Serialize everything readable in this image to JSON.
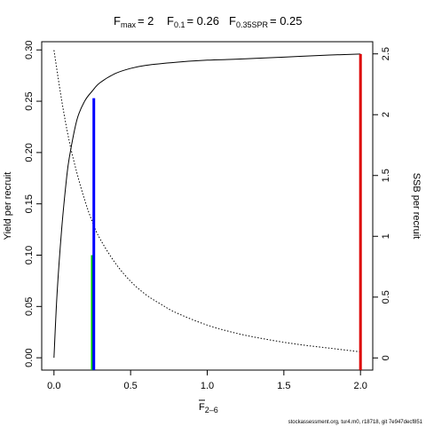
{
  "chart_data": {
    "type": "line",
    "title": {
      "fmax": {
        "main": "F",
        "sub": "max",
        "value": "= 2"
      },
      "f01": {
        "main": "F",
        "sub": "0.1",
        "value": "= 0.26"
      },
      "fspr": {
        "main": "F",
        "sub": "0.35SPR",
        "value": "= 0.25"
      }
    },
    "xlabel": {
      "main": "F",
      "sub": "2–6"
    },
    "ylabel_left": "Yield per recruit",
    "ylabel_right": "SSB per recruit",
    "xlim": [
      -0.08,
      2.08
    ],
    "ylim_left": [
      -0.012,
      0.308
    ],
    "ylim_right": [
      -0.1,
      2.6
    ],
    "x_ticks": [
      {
        "value": 0,
        "label": "0.0"
      },
      {
        "value": 0.5,
        "label": "0.5"
      },
      {
        "value": 1.0,
        "label": "1.0"
      },
      {
        "value": 1.5,
        "label": "1.5"
      },
      {
        "value": 2.0,
        "label": "2.0"
      }
    ],
    "y_left_ticks": [
      {
        "value": 0,
        "label": "0.00"
      },
      {
        "value": 0.05,
        "label": "0.05"
      },
      {
        "value": 0.1,
        "label": "0.10"
      },
      {
        "value": 0.15,
        "label": "0.15"
      },
      {
        "value": 0.2,
        "label": "0.20"
      },
      {
        "value": 0.25,
        "label": "0.25"
      },
      {
        "value": 0.3,
        "label": "0.30"
      }
    ],
    "y_right_ticks": [
      {
        "value": 0,
        "label": "0"
      },
      {
        "value": 0.5,
        "label": "0.5"
      },
      {
        "value": 1.0,
        "label": "1"
      },
      {
        "value": 1.5,
        "label": "1.5"
      },
      {
        "value": 2.0,
        "label": "2"
      },
      {
        "value": 2.5,
        "label": "2.5"
      }
    ],
    "series": [
      {
        "axis": "left",
        "style": "solid",
        "color": "#000000",
        "x": [
          0,
          0.02,
          0.05,
          0.08,
          0.1,
          0.15,
          0.2,
          0.25,
          0.3,
          0.4,
          0.5,
          0.6,
          0.8,
          1.0,
          1.2,
          1.5,
          1.8,
          2.0
        ],
        "y": [
          0,
          0.062,
          0.125,
          0.172,
          0.195,
          0.232,
          0.25,
          0.26,
          0.268,
          0.277,
          0.282,
          0.285,
          0.288,
          0.29,
          0.291,
          0.293,
          0.295,
          0.296
        ]
      },
      {
        "axis": "right",
        "style": "dotted",
        "color": "#000000",
        "x": [
          0,
          0.05,
          0.1,
          0.15,
          0.2,
          0.25,
          0.3,
          0.4,
          0.5,
          0.6,
          0.7,
          0.8,
          1.0,
          1.2,
          1.4,
          1.6,
          1.8,
          2.0
        ],
        "y": [
          2.53,
          2.12,
          1.78,
          1.52,
          1.3,
          1.12,
          0.98,
          0.78,
          0.63,
          0.52,
          0.44,
          0.37,
          0.27,
          0.2,
          0.15,
          0.11,
          0.08,
          0.05
        ]
      }
    ],
    "reference_lines": [
      {
        "name": "F0.35SPR",
        "color": "#00cc00",
        "x": 0.25,
        "y_left_top": 0.1
      },
      {
        "name": "F0.1",
        "color": "#0000ff",
        "x": 0.26,
        "y_left_top": 0.253
      },
      {
        "name": "Fmax",
        "color": "#dd0000",
        "x": 2.0,
        "y_left_top": 0.296
      }
    ],
    "grid": false
  },
  "footer": "stockassessment.org, tur4.m0, r18718, git 7e947decf851"
}
